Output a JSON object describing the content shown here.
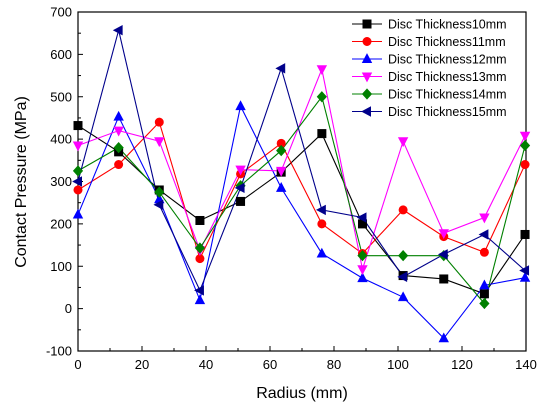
{
  "chart_data": {
    "type": "line",
    "title": "",
    "xlabel": "Radius (mm)",
    "ylabel": "Contact Pressure (MPa)",
    "xlim": [
      0,
      140
    ],
    "ylim": [
      -100,
      700
    ],
    "x_ticks": [
      0,
      20,
      40,
      60,
      80,
      100,
      120,
      140
    ],
    "y_ticks": [
      -100,
      0,
      100,
      200,
      300,
      400,
      500,
      600,
      700
    ],
    "x_tick_labels": [
      "0",
      "20",
      "40",
      "60",
      "80",
      "100",
      "120",
      "140"
    ],
    "y_tick_labels": [
      "-100",
      "0",
      "100",
      "200",
      "300",
      "400",
      "500",
      "600",
      "700"
    ],
    "grid": false,
    "legend_position": "top-right",
    "x": [
      0,
      12.7,
      25.4,
      38.1,
      50.8,
      63.5,
      76.2,
      88.9,
      101.6,
      114.3,
      127,
      139.7
    ],
    "series": [
      {
        "name": "Disc Thickness10mm",
        "color": "#000000",
        "marker": "square",
        "values": [
          432,
          370,
          280,
          208,
          253,
          322,
          413,
          200,
          78,
          70,
          35,
          175
        ]
      },
      {
        "name": "Disc Thickness11mm",
        "color": "#ff0000",
        "marker": "circle",
        "values": [
          280,
          340,
          440,
          118,
          318,
          390,
          200,
          130,
          233,
          170,
          133,
          340
        ]
      },
      {
        "name": "Disc Thickness12mm",
        "color": "#0000ff",
        "marker": "triangle-up",
        "values": [
          222,
          453,
          258,
          20,
          478,
          285,
          130,
          72,
          27,
          -70,
          55,
          73
        ]
      },
      {
        "name": "Disc Thickness13mm",
        "color": "#ff00ff",
        "marker": "triangle-down",
        "values": [
          385,
          420,
          395,
          138,
          328,
          325,
          565,
          93,
          395,
          178,
          215,
          408
        ]
      },
      {
        "name": "Disc Thickness14mm",
        "color": "#008000",
        "marker": "diamond",
        "values": [
          325,
          380,
          275,
          143,
          290,
          373,
          500,
          125,
          125,
          125,
          12,
          385
        ]
      },
      {
        "name": "Disc Thickness15mm",
        "color": "#00008b",
        "marker": "triangle-left",
        "values": [
          300,
          657,
          245,
          43,
          285,
          567,
          233,
          215,
          75,
          128,
          175,
          90
        ]
      }
    ]
  }
}
